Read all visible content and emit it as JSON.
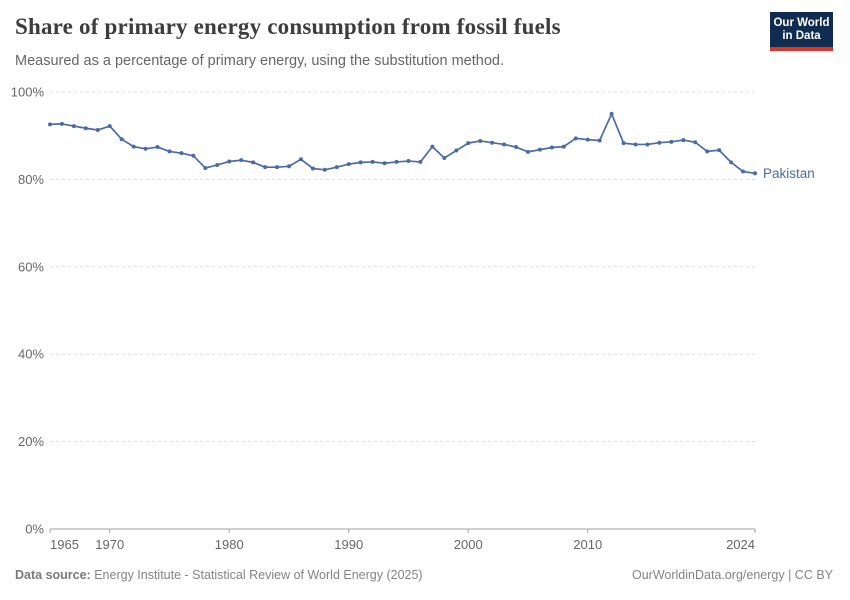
{
  "header": {
    "title": "Share of primary energy consumption from fossil fuels",
    "subtitle": "Measured as a percentage of primary energy, using the substitution method."
  },
  "logo": {
    "line1": "Our World",
    "line2": "in Data",
    "bg_color": "#102d51",
    "bar_color": "#dc362b"
  },
  "chart_data": {
    "type": "line",
    "title": "Share of primary energy consumption from fossil fuels",
    "entity": "Pakistan",
    "x": [
      1965,
      1966,
      1967,
      1968,
      1969,
      1970,
      1971,
      1972,
      1973,
      1974,
      1975,
      1976,
      1977,
      1978,
      1979,
      1980,
      1981,
      1982,
      1983,
      1984,
      1985,
      1986,
      1987,
      1988,
      1989,
      1990,
      1991,
      1992,
      1993,
      1994,
      1995,
      1996,
      1997,
      1998,
      1999,
      2000,
      2001,
      2002,
      2003,
      2004,
      2005,
      2006,
      2007,
      2008,
      2009,
      2010,
      2011,
      2012,
      2013,
      2014,
      2015,
      2016,
      2017,
      2018,
      2019,
      2020,
      2021,
      2022,
      2023,
      2024
    ],
    "values": [
      92.6,
      92.7,
      92.2,
      91.7,
      91.3,
      92.2,
      89.2,
      87.5,
      87.0,
      87.4,
      86.4,
      86.0,
      85.4,
      82.6,
      83.3,
      84.1,
      84.4,
      83.9,
      82.8,
      82.8,
      83.0,
      84.6,
      82.5,
      82.2,
      82.8,
      83.5,
      83.9,
      84.0,
      83.7,
      84.0,
      84.2,
      84.0,
      87.5,
      84.9,
      86.6,
      88.3,
      88.8,
      88.4,
      88.0,
      87.4,
      86.3,
      86.8,
      87.3,
      87.5,
      89.4,
      89.1,
      88.9,
      95.0,
      88.3,
      88.0,
      88.0,
      88.4,
      88.6,
      89.0,
      88.5,
      86.4,
      86.7,
      83.9,
      81.8,
      81.4
    ],
    "xlabel": "",
    "ylabel": "",
    "ylim": [
      0,
      100
    ],
    "xlim": [
      1965,
      2024
    ],
    "y_tick_values": [
      0,
      20,
      40,
      60,
      80,
      100
    ],
    "y_tick_labels": [
      "0%",
      "20%",
      "40%",
      "60%",
      "80%",
      "100%"
    ],
    "x_tick_values": [
      1965,
      1970,
      1980,
      1990,
      2000,
      2010,
      2024
    ],
    "x_tick_labels": [
      "1965",
      "1970",
      "1980",
      "1990",
      "2000",
      "2010",
      "2024"
    ],
    "grid": "horizontal-dashed",
    "legend": "end-of-line-label",
    "line_color": "#4c6ba3",
    "grid_color": "#dcdcdc",
    "axis_color": "#a1a1a1",
    "tick_label_color": "#666666"
  },
  "footer": {
    "source_prefix": "Data source:",
    "source_text": " Energy Institute - Statistical Review of World Energy (2025)",
    "link_text": "OurWorldinData.org/energy | CC BY"
  }
}
